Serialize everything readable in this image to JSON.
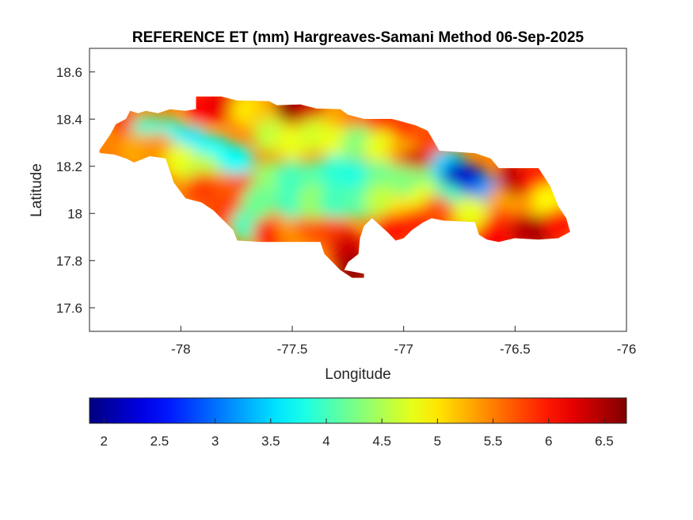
{
  "chart_data": {
    "type": "heatmap",
    "title": "REFERENCE ET (mm) Hargreaves-Samani Method  06-Sep-2025",
    "xlabel": "Longitude",
    "ylabel": "Latitude",
    "xlim": [
      -78.41,
      -76
    ],
    "ylim": [
      17.5,
      18.7
    ],
    "xticks": [
      -78,
      -77.5,
      -77,
      -76.5,
      -76
    ],
    "xtick_labels": [
      "-78",
      "-77.5",
      "-77",
      "-76.5",
      "-76"
    ],
    "yticks": [
      18.6,
      18.4,
      18.2,
      18,
      17.8,
      17.6
    ],
    "ytick_labels": [
      "18.6",
      "18.4",
      "18.2",
      "18",
      "17.8",
      "17.6"
    ],
    "grid": false,
    "colormap": "jet",
    "colorbar": {
      "location": "bottom",
      "clim": [
        1.87,
        6.7
      ],
      "ticks": [
        2,
        2.5,
        3,
        3.5,
        4,
        4.5,
        5,
        5.5,
        6,
        6.5
      ],
      "tick_labels": [
        "2",
        "2.5",
        "3",
        "3.5",
        "4",
        "4.5",
        "5",
        "5.5",
        "6",
        "6.5"
      ]
    },
    "region_outline_lonlat": [
      [
        -78.367,
        18.266
      ],
      [
        -78.317,
        18.334
      ],
      [
        -78.292,
        18.378
      ],
      [
        -78.246,
        18.401
      ],
      [
        -78.228,
        18.435
      ],
      [
        -78.192,
        18.425
      ],
      [
        -78.157,
        18.435
      ],
      [
        -78.103,
        18.425
      ],
      [
        -78.05,
        18.442
      ],
      [
        -77.979,
        18.435
      ],
      [
        -77.932,
        18.442
      ],
      [
        -77.932,
        18.496
      ],
      [
        -77.819,
        18.496
      ],
      [
        -77.747,
        18.479
      ],
      [
        -77.605,
        18.476
      ],
      [
        -77.569,
        18.459
      ],
      [
        -77.463,
        18.462
      ],
      [
        -77.391,
        18.445
      ],
      [
        -77.285,
        18.442
      ],
      [
        -77.249,
        18.418
      ],
      [
        -77.178,
        18.401
      ],
      [
        -77.053,
        18.401
      ],
      [
        -76.947,
        18.374
      ],
      [
        -76.893,
        18.351
      ],
      [
        -76.84,
        18.266
      ],
      [
        -76.68,
        18.256
      ],
      [
        -76.609,
        18.233
      ],
      [
        -76.573,
        18.192
      ],
      [
        -76.395,
        18.192
      ],
      [
        -76.342,
        18.115
      ],
      [
        -76.306,
        18.03
      ],
      [
        -76.27,
        17.98
      ],
      [
        -76.253,
        17.922
      ],
      [
        -76.306,
        17.895
      ],
      [
        -76.395,
        17.889
      ],
      [
        -76.502,
        17.895
      ],
      [
        -76.573,
        17.879
      ],
      [
        -76.626,
        17.889
      ],
      [
        -76.662,
        17.909
      ],
      [
        -76.68,
        17.963
      ],
      [
        -76.822,
        17.97
      ],
      [
        -76.875,
        17.98
      ],
      [
        -76.911,
        17.963
      ],
      [
        -76.964,
        17.929
      ],
      [
        -77.0,
        17.895
      ],
      [
        -77.036,
        17.885
      ],
      [
        -77.071,
        17.919
      ],
      [
        -77.142,
        17.98
      ],
      [
        -77.178,
        17.946
      ],
      [
        -77.196,
        17.895
      ],
      [
        -77.203,
        17.828
      ],
      [
        -77.249,
        17.794
      ],
      [
        -77.267,
        17.76
      ],
      [
        -77.178,
        17.744
      ],
      [
        -77.178,
        17.727
      ],
      [
        -77.231,
        17.727
      ],
      [
        -77.285,
        17.76
      ],
      [
        -77.32,
        17.794
      ],
      [
        -77.356,
        17.828
      ],
      [
        -77.374,
        17.879
      ],
      [
        -77.641,
        17.879
      ],
      [
        -77.747,
        17.885
      ],
      [
        -77.765,
        17.929
      ],
      [
        -77.819,
        17.98
      ],
      [
        -77.854,
        18.013
      ],
      [
        -77.908,
        18.047
      ],
      [
        -77.979,
        18.064
      ],
      [
        -78.032,
        18.131
      ],
      [
        -78.05,
        18.182
      ],
      [
        -78.068,
        18.233
      ],
      [
        -78.139,
        18.243
      ],
      [
        -78.21,
        18.216
      ],
      [
        -78.246,
        18.233
      ],
      [
        -78.299,
        18.25
      ],
      [
        -78.363,
        18.256
      ]
    ],
    "field_samples_lonlat_value": [
      [
        -78.3,
        18.31,
        5.2
      ],
      [
        -78.25,
        18.37,
        5.8
      ],
      [
        -78.15,
        18.34,
        3.9
      ],
      [
        -78.05,
        18.33,
        3.8
      ],
      [
        -77.95,
        18.3,
        3.6
      ],
      [
        -77.85,
        18.26,
        3.7
      ],
      [
        -77.75,
        18.22,
        3.7
      ],
      [
        -78.3,
        18.27,
        5.5
      ],
      [
        -78.2,
        18.27,
        5.3
      ],
      [
        -78.1,
        18.27,
        5.4
      ],
      [
        -78.0,
        18.22,
        4.8
      ],
      [
        -77.9,
        18.18,
        4.6
      ],
      [
        -77.9,
        18.45,
        6.1
      ],
      [
        -77.8,
        18.47,
        6.2
      ],
      [
        -77.7,
        18.44,
        5.0
      ],
      [
        -77.6,
        18.4,
        5.2
      ],
      [
        -77.5,
        18.46,
        6.6
      ],
      [
        -77.4,
        18.44,
        6.3
      ],
      [
        -77.3,
        18.4,
        5.3
      ],
      [
        -77.2,
        18.38,
        5.6
      ],
      [
        -77.1,
        18.37,
        6.0
      ],
      [
        -77.0,
        18.33,
        6.0
      ],
      [
        -76.9,
        18.3,
        5.8
      ],
      [
        -77.6,
        18.33,
        4.6
      ],
      [
        -77.5,
        18.3,
        4.8
      ],
      [
        -77.4,
        18.33,
        4.7
      ],
      [
        -77.3,
        18.3,
        4.8
      ],
      [
        -77.2,
        18.3,
        4.3
      ],
      [
        -77.1,
        18.28,
        4.8
      ],
      [
        -77.0,
        18.25,
        5.3
      ],
      [
        -76.95,
        18.2,
        6.3
      ],
      [
        -77.8,
        18.1,
        5.6
      ],
      [
        -77.7,
        18.1,
        5.8
      ],
      [
        -77.6,
        18.15,
        4.4
      ],
      [
        -77.5,
        18.15,
        4.0
      ],
      [
        -77.4,
        18.15,
        4.1
      ],
      [
        -77.3,
        18.18,
        3.9
      ],
      [
        -77.2,
        18.15,
        3.8
      ],
      [
        -77.1,
        18.15,
        4.2
      ],
      [
        -77.0,
        18.13,
        4.3
      ],
      [
        -76.9,
        18.12,
        4.3
      ],
      [
        -77.9,
        18.1,
        5.8
      ],
      [
        -77.8,
        18.0,
        5.8
      ],
      [
        -77.7,
        17.95,
        4.0
      ],
      [
        -77.6,
        17.92,
        6.0
      ],
      [
        -77.5,
        17.95,
        5.4
      ],
      [
        -77.4,
        17.95,
        5.7
      ],
      [
        -77.3,
        17.92,
        5.8
      ],
      [
        -77.25,
        17.85,
        6.3
      ],
      [
        -77.22,
        17.76,
        6.6
      ],
      [
        -77.65,
        18.05,
        4.2
      ],
      [
        -77.5,
        18.05,
        4.0
      ],
      [
        -77.4,
        18.05,
        4.4
      ],
      [
        -77.3,
        18.05,
        4.0
      ],
      [
        -77.2,
        18.05,
        4.1
      ],
      [
        -77.1,
        18.05,
        4.6
      ],
      [
        -77.0,
        18.0,
        5.0
      ],
      [
        -76.9,
        18.05,
        4.8
      ],
      [
        -76.8,
        18.2,
        3.5
      ],
      [
        -76.75,
        18.15,
        2.2
      ],
      [
        -76.68,
        18.12,
        2.3
      ],
      [
        -76.62,
        18.08,
        3.2
      ],
      [
        -76.8,
        18.05,
        4.0
      ],
      [
        -76.7,
        18.0,
        4.8
      ],
      [
        -76.55,
        18.05,
        5.3
      ],
      [
        -76.5,
        18.15,
        6.4
      ],
      [
        -76.4,
        18.15,
        6.0
      ],
      [
        -76.35,
        18.05,
        4.9
      ],
      [
        -76.55,
        17.95,
        5.8
      ],
      [
        -76.45,
        17.92,
        6.4
      ],
      [
        -76.35,
        17.93,
        6.6
      ],
      [
        -76.3,
        17.95,
        6.0
      ],
      [
        -76.6,
        17.9,
        6.1
      ],
      [
        -76.85,
        18.0,
        5.7
      ],
      [
        -76.95,
        17.95,
        5.9
      ],
      [
        -77.05,
        17.93,
        6.0
      ]
    ]
  }
}
